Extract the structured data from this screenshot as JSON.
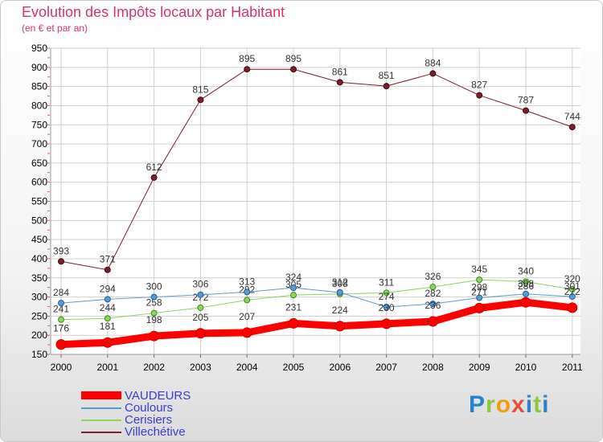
{
  "title": "Evolution des Impôts locaux par Habitant",
  "subtitle": "(en € et par an)",
  "logo": {
    "p": "P",
    "r": "r",
    "o": "o",
    "x": "x",
    "i": "i",
    "t": "t",
    "i2": "i"
  },
  "colors": {
    "accent": "#d6336c",
    "axis_text": "#000000",
    "gridline": "#cfcfcf",
    "legend_text": "#3a3ad6"
  },
  "chart_data": {
    "type": "line",
    "title": "Evolution des Impôts locaux par Habitant",
    "subtitle": "(en € et par an)",
    "xlabel": "",
    "ylabel": "",
    "grid": true,
    "ylim": [
      150,
      950
    ],
    "yticks": [
      150,
      200,
      250,
      300,
      350,
      400,
      450,
      500,
      550,
      600,
      650,
      700,
      750,
      800,
      850,
      900,
      950
    ],
    "categories": [
      "2000",
      "2001",
      "2002",
      "2003",
      "2004",
      "2005",
      "2006",
      "2007",
      "2008",
      "2009",
      "2010",
      "2011"
    ],
    "legend_position": "bottom-left",
    "series": [
      {
        "name": "Villechétive",
        "color": "#7a1f2b",
        "values": [
          393,
          371,
          612,
          815,
          895,
          895,
          861,
          851,
          884,
          827,
          787,
          744
        ]
      },
      {
        "name": "Cerisiers",
        "color": "#8fd35f",
        "values": [
          241,
          244,
          258,
          272,
          292,
          305,
          308,
          311,
          326,
          345,
          340,
          320
        ]
      },
      {
        "name": "Coulours",
        "color": "#5b9bd5",
        "values": [
          284,
          294,
          300,
          306,
          313,
          324,
          312,
          274,
          282,
          298,
          308,
          301
        ]
      },
      {
        "name": "VAUDEURS",
        "color": "#ff0000",
        "values": [
          176,
          181,
          198,
          205,
          207,
          231,
          224,
          230,
          236,
          271,
          286,
          272
        ]
      }
    ],
    "legend": [
      "VAUDEURS",
      "Coulours",
      "Cerisiers",
      "Villechétive"
    ]
  }
}
